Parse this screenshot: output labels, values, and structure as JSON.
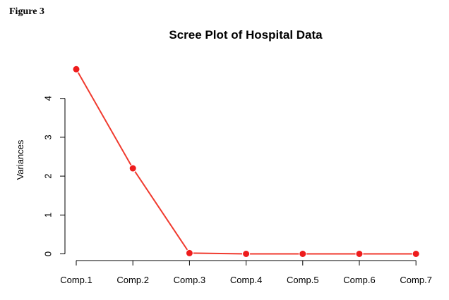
{
  "figure_label": "Figure 3",
  "chart_data": {
    "type": "line",
    "title": "Scree Plot of Hospital Data",
    "xlabel": "",
    "ylabel": "Variances",
    "categories": [
      "Comp.1",
      "Comp.2",
      "Comp.3",
      "Comp.4",
      "Comp.5",
      "Comp.6",
      "Comp.7"
    ],
    "values": [
      4.75,
      2.2,
      0.02,
      0.0,
      0.0,
      0.0,
      0.0
    ],
    "y_ticks": [
      "0",
      "1",
      "2",
      "3",
      "4"
    ],
    "ylim": [
      0,
      4.75
    ],
    "grid": false,
    "line_color": "#f03a2e",
    "point_color": "#ee1c1c"
  }
}
